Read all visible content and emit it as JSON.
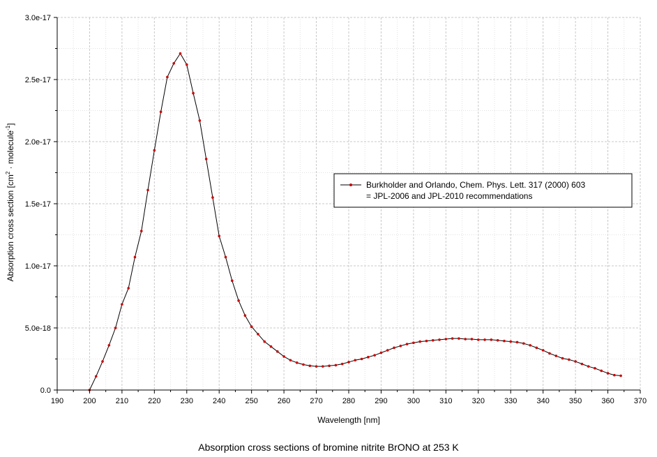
{
  "chart_data": {
    "type": "line",
    "xlabel": "Wavelength [nm]",
    "ylabel_parts": [
      "Absorption cross section [cm",
      "2",
      " · molecule",
      "-1",
      "]"
    ],
    "xlim": [
      190,
      370
    ],
    "ylim": [
      0,
      3e-17
    ],
    "x_ticks": [
      190,
      200,
      210,
      220,
      230,
      240,
      250,
      260,
      270,
      280,
      290,
      300,
      310,
      320,
      330,
      340,
      350,
      360,
      370
    ],
    "y_ticks": [
      0,
      5e-18,
      1e-17,
      1.5e-17,
      2e-17,
      2.5e-17,
      3e-17
    ],
    "y_tick_labels": [
      "0.0",
      "5.0e-18",
      "1.0e-17",
      "1.5e-17",
      "2.0e-17",
      "2.5e-17",
      "3.0e-17"
    ],
    "grid": true,
    "legend_position": "center-right",
    "series": [
      {
        "name_lines": [
          "Burkholder and Orlando, Chem. Phys. Lett. 317 (2000) 603",
          "= JPL-2006 and JPL-2010 recommendations"
        ],
        "line_color": "#000000",
        "marker_color": "#cc0000",
        "x": [
          200,
          202,
          204,
          206,
          208,
          210,
          212,
          214,
          216,
          218,
          220,
          222,
          224,
          226,
          228,
          230,
          232,
          234,
          236,
          238,
          240,
          242,
          244,
          246,
          248,
          250,
          252,
          254,
          256,
          258,
          260,
          262,
          264,
          266,
          268,
          270,
          272,
          274,
          276,
          278,
          280,
          282,
          284,
          286,
          288,
          290,
          292,
          294,
          296,
          298,
          300,
          302,
          304,
          306,
          308,
          310,
          312,
          314,
          316,
          318,
          320,
          322,
          324,
          326,
          328,
          330,
          332,
          334,
          336,
          338,
          340,
          342,
          344,
          346,
          348,
          350,
          352,
          354,
          356,
          358,
          360,
          362,
          364
        ],
        "y": [
          0.0,
          1.1e-18,
          2.3e-18,
          3.6e-18,
          5e-18,
          6.9e-18,
          8.2e-18,
          1.07e-17,
          1.28e-17,
          1.61e-17,
          1.93e-17,
          2.24e-17,
          2.52e-17,
          2.63e-17,
          2.71e-17,
          2.62e-17,
          2.39e-17,
          2.17e-17,
          1.86e-17,
          1.55e-17,
          1.24e-17,
          1.07e-17,
          8.8e-18,
          7.2e-18,
          6e-18,
          5.1e-18,
          4.5e-18,
          3.9e-18,
          3.5e-18,
          3.1e-18,
          2.7e-18,
          2.4e-18,
          2.2e-18,
          2.05e-18,
          1.95e-18,
          1.9e-18,
          1.9e-18,
          1.95e-18,
          2e-18,
          2.1e-18,
          2.25e-18,
          2.4e-18,
          2.5e-18,
          2.65e-18,
          2.8e-18,
          3e-18,
          3.2e-18,
          3.4e-18,
          3.55e-18,
          3.7e-18,
          3.8e-18,
          3.9e-18,
          3.95e-18,
          4e-18,
          4.05e-18,
          4.1e-18,
          4.15e-18,
          4.15e-18,
          4.1e-18,
          4.1e-18,
          4.05e-18,
          4.05e-18,
          4.05e-18,
          4e-18,
          3.95e-18,
          3.9e-18,
          3.85e-18,
          3.75e-18,
          3.6e-18,
          3.4e-18,
          3.2e-18,
          2.95e-18,
          2.75e-18,
          2.55e-18,
          2.45e-18,
          2.3e-18,
          2.1e-18,
          1.9e-18,
          1.75e-18,
          1.55e-18,
          1.35e-18,
          1.2e-18,
          1.15e-18
        ]
      }
    ],
    "caption": "Absorption cross sections of bromine nitrite BrONO at 253 K"
  }
}
